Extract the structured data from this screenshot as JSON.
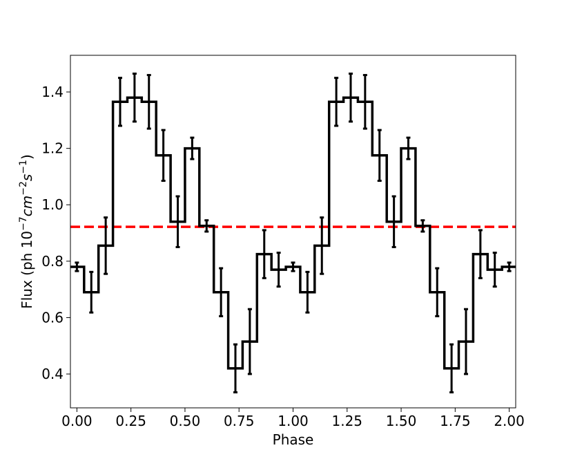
{
  "chart_data": {
    "type": "line",
    "title": "",
    "xlabel": "Phase",
    "ylabel_parts": [
      "Flux (ph 10",
      "−7",
      "cm",
      "−2",
      "s",
      "−1",
      ")"
    ],
    "xlim": [
      -0.03,
      2.03
    ],
    "ylim": [
      0.28,
      1.53
    ],
    "xticks": [
      0.0,
      0.25,
      0.5,
      0.75,
      1.0,
      1.25,
      1.5,
      1.75,
      2.0
    ],
    "xtick_labels": [
      "0.00",
      "0.25",
      "0.50",
      "0.75",
      "1.00",
      "1.25",
      "1.50",
      "1.75",
      "2.00"
    ],
    "yticks": [
      0.4,
      0.6,
      0.8,
      1.0,
      1.2,
      1.4
    ],
    "ytick_labels": [
      "0.4",
      "0.6",
      "0.8",
      "1.0",
      "1.2",
      "1.4"
    ],
    "grid": false,
    "bin_width": 0.0667,
    "series": [
      {
        "style": "step",
        "color": "#000000",
        "x": [
          0.0,
          0.0667,
          0.1333,
          0.2,
          0.2667,
          0.3333,
          0.4,
          0.4667,
          0.5333,
          0.6,
          0.6667,
          0.7333,
          0.8,
          0.8667,
          0.9333,
          1.0,
          1.0667,
          1.1333,
          1.2,
          1.2667,
          1.3333,
          1.4,
          1.4667,
          1.5333,
          1.6,
          1.6667,
          1.7333,
          1.8,
          1.8667,
          1.9333,
          2.0
        ],
        "y": [
          0.78,
          0.69,
          0.855,
          1.365,
          1.38,
          1.365,
          1.175,
          0.94,
          1.2,
          0.925,
          0.69,
          0.42,
          0.515,
          0.825,
          0.77,
          0.78,
          0.69,
          0.855,
          1.365,
          1.38,
          1.365,
          1.175,
          0.94,
          1.2,
          0.925,
          0.69,
          0.42,
          0.515,
          0.825,
          0.77,
          0.78
        ],
        "yerr": [
          0.015,
          0.072,
          0.1,
          0.085,
          0.085,
          0.095,
          0.09,
          0.09,
          0.038,
          0.02,
          0.085,
          0.085,
          0.115,
          0.085,
          0.06,
          0.015,
          0.072,
          0.1,
          0.085,
          0.085,
          0.095,
          0.09,
          0.09,
          0.038,
          0.02,
          0.085,
          0.085,
          0.115,
          0.085,
          0.06,
          0.015
        ]
      }
    ],
    "reference_line": {
      "y": 0.922,
      "color": "#ff0000",
      "style": "dashed"
    }
  }
}
